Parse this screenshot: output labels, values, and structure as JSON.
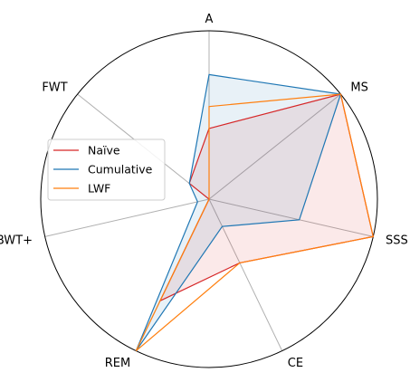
{
  "chart_data": {
    "type": "radar",
    "axes": [
      "A",
      "MS",
      "SSS",
      "CE",
      "REM",
      "BWT+",
      "FWT"
    ],
    "range": [
      0,
      1
    ],
    "grid": false,
    "legend_position": "center-left",
    "series": [
      {
        "name": "Naïve",
        "color": "#d62728",
        "fill": true,
        "values": [
          0.42,
          1.0,
          1.0,
          0.42,
          0.67,
          0.0,
          0.15
        ]
      },
      {
        "name": "Cumulative",
        "color": "#1f77b4",
        "fill": true,
        "values": [
          0.74,
          1.0,
          0.55,
          0.18,
          1.0,
          0.07,
          0.15
        ]
      },
      {
        "name": "LWF",
        "color": "#ff7f0e",
        "fill": false,
        "values": [
          0.55,
          1.0,
          1.0,
          0.42,
          1.0,
          0.0,
          0.0
        ]
      }
    ]
  }
}
